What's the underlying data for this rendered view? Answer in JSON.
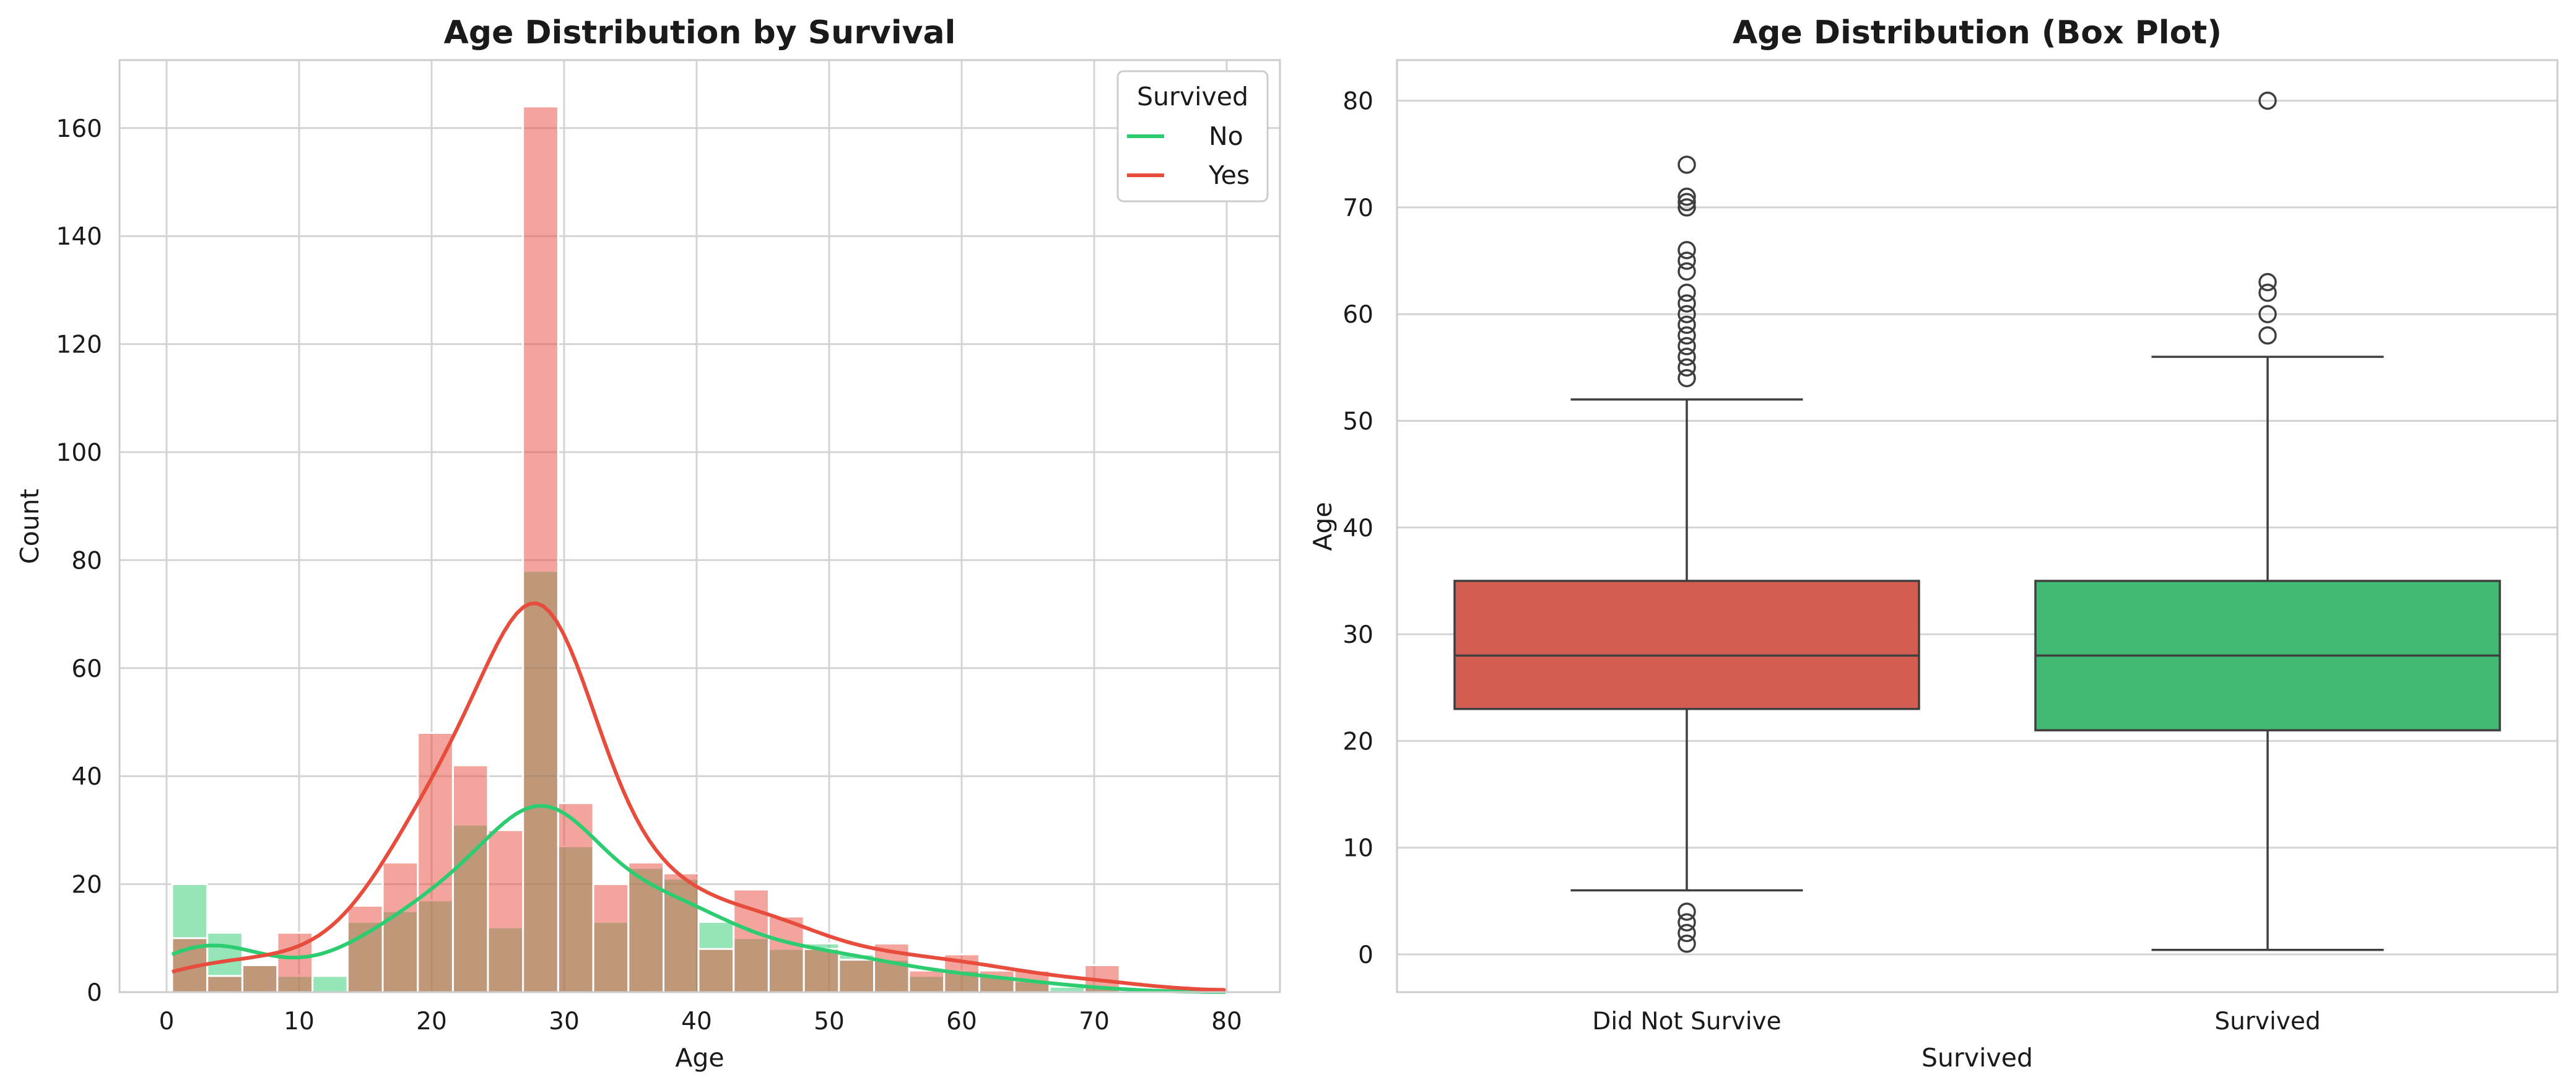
{
  "colors": {
    "no": "#2ecc71",
    "yes": "#e74c3c",
    "box_did_not_survive": "#d45d52",
    "box_survived": "#41b974"
  },
  "chart_data": [
    {
      "type": "histogram",
      "title": "Age Distribution by Survival",
      "xlabel": "Age",
      "ylabel": "Count",
      "xlim": [
        0,
        80
      ],
      "ylim": [
        0,
        170
      ],
      "xticks": [
        0,
        10,
        20,
        30,
        40,
        50,
        60,
        70,
        80
      ],
      "yticks": [
        0,
        20,
        40,
        60,
        80,
        100,
        120,
        140,
        160
      ],
      "grid": true,
      "legend": {
        "title": "Survived",
        "position": "top-right",
        "entries": [
          "No",
          "Yes"
        ]
      },
      "bin_edges": [
        0.42,
        3.07,
        5.72,
        8.36,
        11.01,
        13.66,
        16.31,
        18.96,
        21.61,
        24.25,
        26.9,
        29.55,
        32.2,
        34.85,
        37.5,
        40.14,
        42.79,
        45.44,
        48.09,
        50.74,
        53.39,
        56.03,
        58.68,
        61.33,
        63.98,
        66.63,
        69.28,
        71.92,
        74.57,
        77.22,
        79.87
      ],
      "series": [
        {
          "name": "No",
          "values": [
            20,
            11,
            5,
            3,
            3,
            13,
            15,
            17,
            31,
            12,
            78,
            27,
            13,
            23,
            21,
            13,
            10,
            8,
            9,
            7,
            6,
            3,
            4,
            3,
            2,
            1,
            1,
            0,
            0,
            0
          ],
          "kde_peak": 34.5
        },
        {
          "name": "Yes",
          "values": [
            10,
            3,
            5,
            11,
            0,
            16,
            24,
            48,
            42,
            30,
            164,
            35,
            20,
            24,
            22,
            8,
            19,
            14,
            8,
            6,
            9,
            4,
            7,
            4,
            4,
            0,
            5,
            0,
            0,
            1
          ],
          "kde_peak": 72
        }
      ]
    },
    {
      "type": "box",
      "title": "Age Distribution (Box Plot)",
      "xlabel": "Survived",
      "ylabel": "Age",
      "ylim": [
        -3.5,
        84
      ],
      "yticks": [
        0,
        10,
        20,
        30,
        40,
        50,
        60,
        70,
        80
      ],
      "categories": [
        "Did Not Survive",
        "Survived"
      ],
      "grid": true,
      "boxes": [
        {
          "category": "Did Not Survive",
          "whisker_low": 6,
          "q1": 23,
          "median": 28,
          "q3": 35,
          "whisker_high": 52,
          "outliers": [
            1,
            2,
            3,
            4,
            54,
            55,
            56,
            57,
            58,
            59,
            60,
            61,
            62,
            64,
            65,
            66,
            70,
            70.5,
            71,
            74
          ]
        },
        {
          "category": "Survived",
          "whisker_low": 0.42,
          "q1": 21,
          "median": 28,
          "q3": 35,
          "whisker_high": 56,
          "outliers": [
            58,
            60,
            62,
            63,
            80
          ]
        }
      ]
    }
  ]
}
